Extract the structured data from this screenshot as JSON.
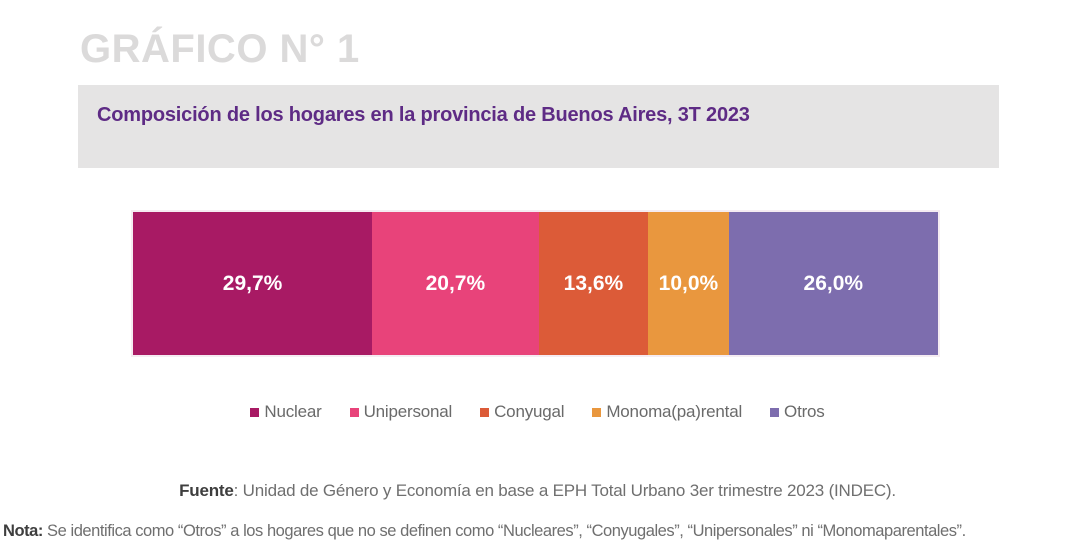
{
  "header": {
    "figure_label": "GRÁFICO N° 1",
    "chart_title": "Composición de los hogares en la provincia de Buenos Aires, 3T 2023"
  },
  "chart_data": {
    "type": "bar",
    "variant": "horizontal-stacked-100",
    "title": "Composición de los hogares en la provincia de Buenos Aires, 3T 2023",
    "categories": [
      "Nuclear",
      "Unipersonal",
      "Conyugal",
      "Monoma(pa)rental",
      "Otros"
    ],
    "values": [
      29.7,
      20.7,
      13.6,
      10.0,
      26.0
    ],
    "value_labels": [
      "29,7%",
      "20,7%",
      "13,6%",
      "10,0%",
      "26,0%"
    ],
    "colors": [
      "#a81a64",
      "#e8437a",
      "#dc5b38",
      "#e9973e",
      "#7d6dae"
    ],
    "label_color": "#ffffff",
    "legend_position": "bottom",
    "grid": false,
    "xlim": [
      0,
      100
    ]
  },
  "footer": {
    "fuente_label": "Fuente",
    "fuente_text": ": Unidad de Género y Economía en base a EPH Total Urbano 3er trimestre 2023 (INDEC).",
    "nota_label": "Nota:",
    "nota_text": " Se identifica como “Otros” a los hogares que no se definen como “Nucleares”, “Conyugales”, “Unipersonales” ni “Monomaparentales”."
  },
  "theme": {
    "figure_title_color": "#dbdada",
    "banner_background": "#e5e4e4",
    "chart_title_color": "#5e2b85",
    "legend_text_color": "#6a6a6a",
    "footer_text_color": "#6f6f6f"
  }
}
